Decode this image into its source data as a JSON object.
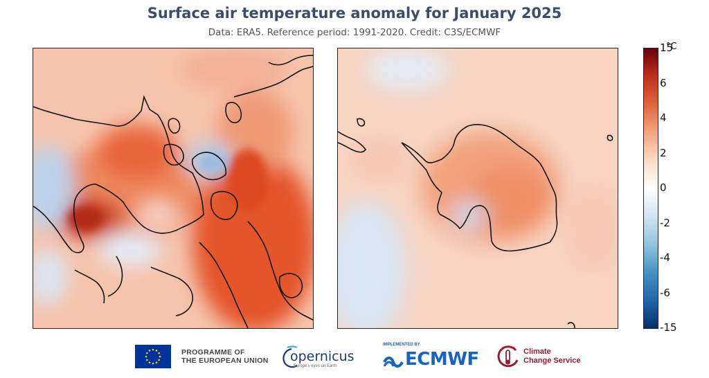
{
  "title": "Surface air temperature anomaly for January 2025",
  "subtitle": "Data: ERA5.  Reference period: 1991-2020.  Credit: C3S/ECMWF",
  "panels": [
    {
      "id": "north",
      "region": "Arctic"
    },
    {
      "id": "south",
      "region": "Antarctic"
    }
  ],
  "colorbar": {
    "unit": "°C",
    "ticks": [
      "15",
      "6",
      "4",
      "2",
      "0",
      "-2",
      "-4",
      "-6",
      "-15"
    ],
    "colors": [
      "#08306b",
      "#2166ac",
      "#4393c3",
      "#92c5de",
      "#d1e5f0",
      "#ffffff",
      "#fddbc7",
      "#f4a582",
      "#e0643a",
      "#c0301b",
      "#67000d"
    ]
  },
  "footer": {
    "eu_line1": "PROGRAMME OF",
    "eu_line2": "THE EUROPEAN UNION",
    "copernicus": "opernicus",
    "copernicus_sub": "Europe's eyes on Earth",
    "ecmwf_implemented": "IMPLEMENTED BY",
    "ecmwf": "ECMWF",
    "c3s_line1": "Climate",
    "c3s_line2": "Change Service"
  },
  "icons": [
    "eu-flag-icon",
    "copernicus-logo-icon",
    "ecmwf-logo-icon",
    "c3s-logo-icon"
  ]
}
